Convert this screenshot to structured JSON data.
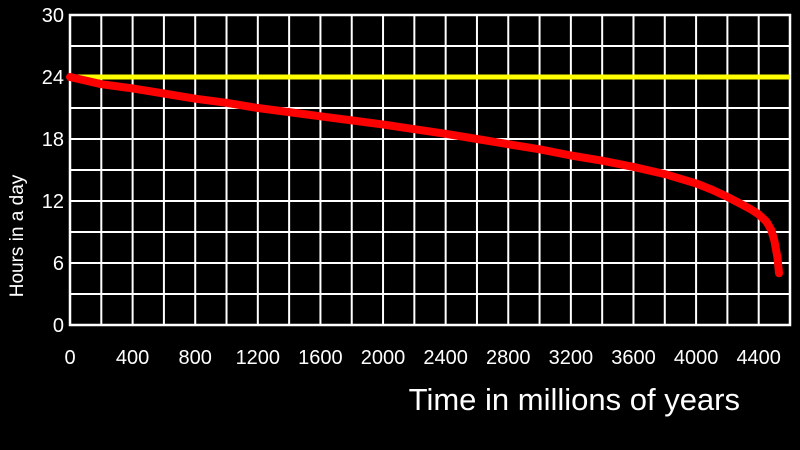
{
  "chart_data": {
    "type": "line",
    "title": "",
    "xlabel": "Time in millions of years",
    "ylabel": "Hours in a day",
    "xlim": [
      0,
      4600
    ],
    "ylim": [
      0,
      30
    ],
    "x_ticks": [
      0,
      400,
      800,
      1200,
      1600,
      2000,
      2400,
      2800,
      3200,
      3600,
      4000,
      4400
    ],
    "y_ticks": [
      0,
      6,
      12,
      18,
      24,
      30
    ],
    "grid": true,
    "legend": "none",
    "colors": {
      "background": "#000000",
      "grid": "#ffffff",
      "text": "#ffffff",
      "reference_line": "#ffff00",
      "series": "#ff0000"
    },
    "reference_line": {
      "y": 24
    },
    "series": [
      {
        "x": [
          0,
          200,
          400,
          600,
          800,
          1000,
          1200,
          1400,
          1600,
          1800,
          2000,
          2200,
          2400,
          2600,
          2800,
          3000,
          3200,
          3400,
          3600,
          3800,
          4000,
          4100,
          4200,
          4300,
          4350,
          4400,
          4450,
          4480,
          4500,
          4520,
          4530
        ],
        "y": [
          24,
          23.3,
          22.9,
          22.4,
          21.9,
          21.5,
          21.0,
          20.6,
          20.2,
          19.8,
          19.4,
          18.95,
          18.5,
          18.0,
          17.5,
          17.0,
          16.4,
          15.9,
          15.3,
          14.6,
          13.7,
          13.1,
          12.4,
          11.6,
          11.2,
          10.7,
          10.0,
          9.2,
          8.2,
          6.5,
          5.0
        ]
      }
    ]
  }
}
